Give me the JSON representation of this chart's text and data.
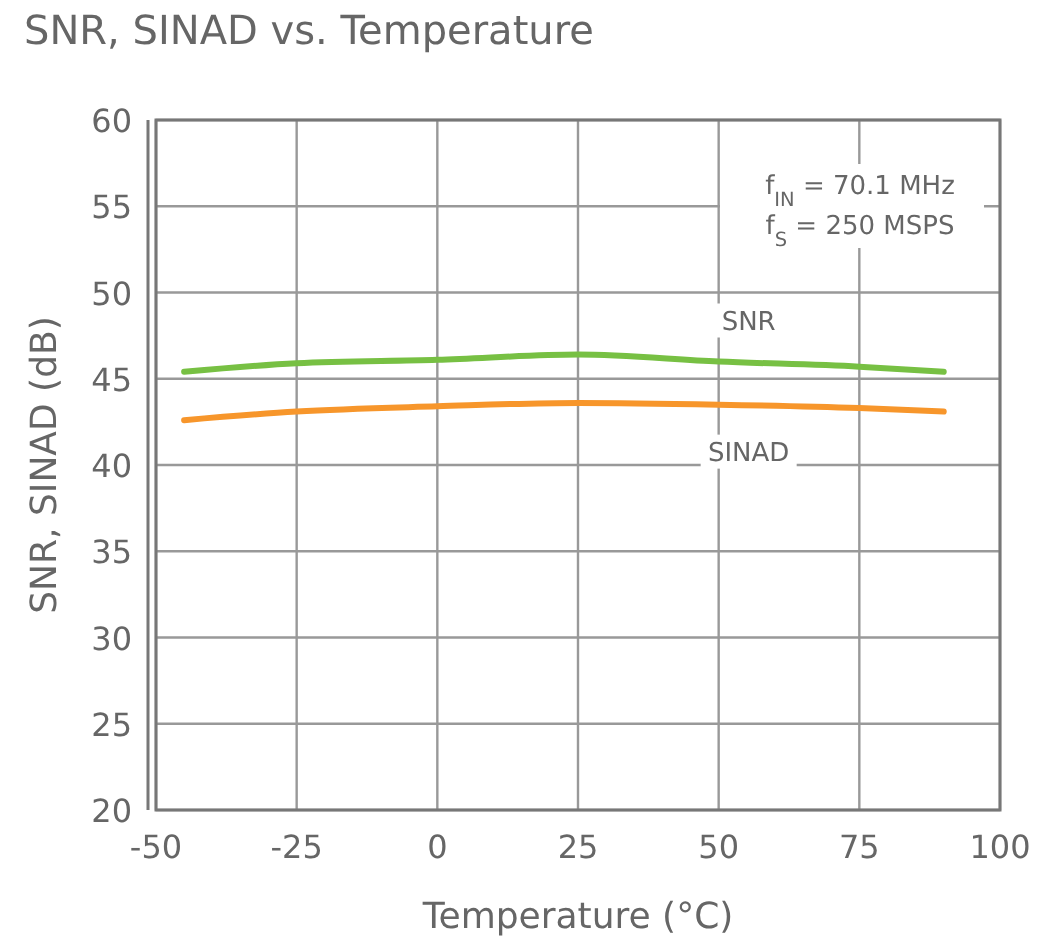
{
  "chart_data": {
    "type": "line",
    "title": "SNR, SINAD vs. Temperature",
    "xlabel": "Temperature (°C)",
    "ylabel": "SNR, SINAD (dB)",
    "x": [
      -45,
      -25,
      0,
      25,
      50,
      75,
      90
    ],
    "series": [
      {
        "name": "SNR",
        "color": "#77c043",
        "values": [
          45.4,
          45.9,
          46.1,
          46.4,
          46.0,
          45.7,
          45.4
        ]
      },
      {
        "name": "SINAD",
        "color": "#f7962b",
        "values": [
          42.6,
          43.1,
          43.4,
          43.6,
          43.5,
          43.3,
          43.1
        ]
      }
    ],
    "annotations": [
      "f$_{IN}$ = 70.1 MHz",
      "f$_{S}$ = 250 MSPS"
    ],
    "xlim": [
      -50,
      100
    ],
    "xticks": [
      -50,
      -25,
      0,
      25,
      50,
      75,
      100
    ],
    "ylim": [
      20,
      60
    ],
    "yticks": [
      20,
      25,
      30,
      35,
      40,
      45,
      50,
      55,
      60
    ],
    "grid": true,
    "marker": "none",
    "line_style": "solid"
  }
}
